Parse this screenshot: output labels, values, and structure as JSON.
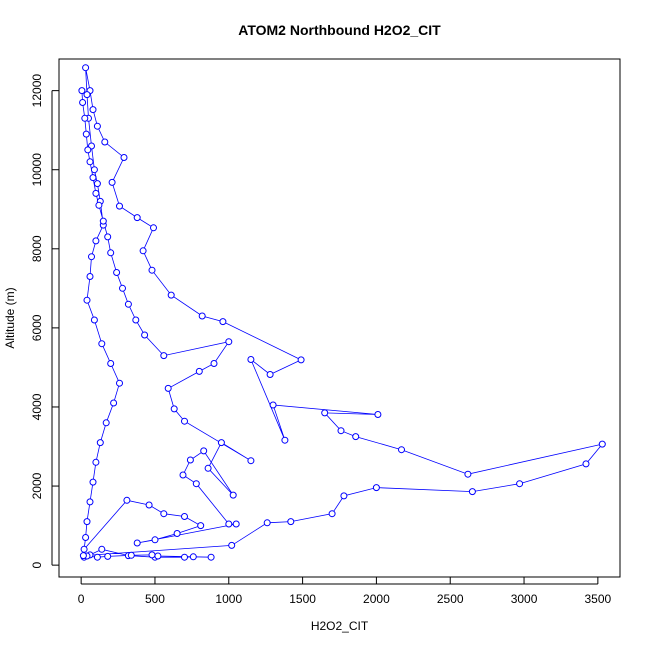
{
  "chart_data": {
    "type": "scatter",
    "title": "ATOM2 Northbound H2O2_CIT",
    "xlabel": "H2O2_CIT",
    "ylabel": "Altitude (m)",
    "xlim": [
      -150,
      3650
    ],
    "ylim": [
      -300,
      12800
    ],
    "xticks": [
      0,
      500,
      1000,
      1500,
      2000,
      2500,
      3000,
      3500
    ],
    "yticks": [
      0,
      2000,
      4000,
      6000,
      8000,
      10000,
      12000
    ],
    "grid": false,
    "style": "points connected by lines (type='b')",
    "series": [
      {
        "color": "#0000ff",
        "marker": "open-circle",
        "points": [
          [
            20,
            200
          ],
          [
            60,
            260
          ],
          [
            140,
            400
          ],
          [
            320,
            240
          ],
          [
            500,
            200
          ],
          [
            700,
            200
          ],
          [
            760,
            210
          ],
          [
            880,
            200
          ],
          [
            520,
            230
          ],
          [
            480,
            260
          ],
          [
            340,
            250
          ],
          [
            180,
            220
          ],
          [
            110,
            200
          ],
          [
            40,
            230
          ],
          [
            15,
            240
          ],
          [
            1020,
            500
          ],
          [
            1260,
            1070
          ],
          [
            1420,
            1100
          ],
          [
            1700,
            1300
          ],
          [
            1780,
            1750
          ],
          [
            2000,
            1960
          ],
          [
            2650,
            1860
          ],
          [
            2970,
            2060
          ],
          [
            3420,
            2560
          ],
          [
            3530,
            3060
          ],
          [
            2620,
            2300
          ],
          [
            2170,
            2920
          ],
          [
            1860,
            3250
          ],
          [
            1760,
            3400
          ],
          [
            1650,
            3850
          ],
          [
            2010,
            3810
          ],
          [
            1300,
            4050
          ],
          [
            1380,
            3160
          ],
          [
            1150,
            5200
          ],
          [
            1280,
            4820
          ],
          [
            1490,
            5190
          ],
          [
            960,
            6160
          ],
          [
            820,
            6300
          ],
          [
            610,
            6830
          ],
          [
            480,
            7460
          ],
          [
            420,
            7950
          ],
          [
            490,
            8530
          ],
          [
            380,
            8790
          ],
          [
            260,
            9080
          ],
          [
            210,
            9680
          ],
          [
            290,
            10310
          ],
          [
            160,
            10700
          ],
          [
            110,
            11100
          ],
          [
            80,
            11520
          ],
          [
            60,
            12000
          ],
          [
            30,
            12580
          ],
          [
            40,
            11900
          ],
          [
            50,
            11300
          ],
          [
            70,
            10600
          ],
          [
            90,
            10000
          ],
          [
            110,
            9650
          ],
          [
            130,
            9200
          ],
          [
            150,
            8600
          ],
          [
            100,
            8200
          ],
          [
            70,
            7800
          ],
          [
            60,
            7300
          ],
          [
            40,
            6700
          ],
          [
            90,
            6200
          ],
          [
            140,
            5600
          ],
          [
            200,
            5100
          ],
          [
            260,
            4600
          ],
          [
            220,
            4100
          ],
          [
            170,
            3600
          ],
          [
            130,
            3100
          ],
          [
            100,
            2600
          ],
          [
            80,
            2100
          ],
          [
            60,
            1600
          ],
          [
            40,
            1100
          ],
          [
            30,
            700
          ],
          [
            20,
            400
          ],
          [
            310,
            1640
          ],
          [
            460,
            1520
          ],
          [
            560,
            1300
          ],
          [
            700,
            1230
          ],
          [
            810,
            1000
          ],
          [
            650,
            800
          ],
          [
            500,
            640
          ],
          [
            380,
            560
          ],
          [
            1050,
            1040
          ],
          [
            1000,
            1040
          ],
          [
            780,
            2060
          ],
          [
            690,
            2280
          ],
          [
            740,
            2660
          ],
          [
            830,
            2890
          ],
          [
            1030,
            1770
          ],
          [
            860,
            2450
          ],
          [
            950,
            3100
          ],
          [
            1150,
            2640
          ],
          [
            700,
            3640
          ],
          [
            630,
            3950
          ],
          [
            590,
            4470
          ],
          [
            800,
            4900
          ],
          [
            900,
            5100
          ],
          [
            1000,
            5650
          ],
          [
            560,
            5300
          ],
          [
            430,
            5820
          ],
          [
            370,
            6200
          ],
          [
            320,
            6600
          ],
          [
            280,
            7000
          ],
          [
            240,
            7400
          ],
          [
            200,
            7900
          ],
          [
            180,
            8300
          ],
          [
            150,
            8700
          ],
          [
            120,
            9100
          ],
          [
            100,
            9400
          ],
          [
            80,
            9800
          ],
          [
            60,
            10200
          ],
          [
            45,
            10500
          ],
          [
            35,
            10900
          ],
          [
            25,
            11300
          ],
          [
            10,
            11700
          ],
          [
            5,
            12000
          ]
        ]
      }
    ]
  }
}
